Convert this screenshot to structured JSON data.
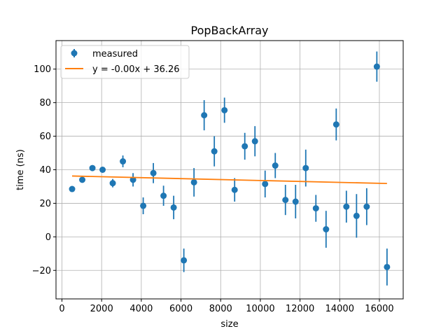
{
  "chart_data": {
    "type": "scatter",
    "title": "PopBackArray",
    "xlabel": "size",
    "ylabel": "time (ns)",
    "xlim": [
      -300,
      17200
    ],
    "ylim": [
      -37,
      117
    ],
    "xticks": [
      0,
      2000,
      4000,
      6000,
      8000,
      10000,
      12000,
      14000,
      16000
    ],
    "yticks": [
      -20,
      0,
      20,
      40,
      60,
      80,
      100
    ],
    "grid": true,
    "legend_position": "top-left",
    "colors": {
      "measured": "#1f77b4",
      "fit": "#ff7f0e"
    },
    "series": [
      {
        "name": "measured",
        "kind": "errorbar",
        "points": [
          {
            "x": 512,
            "y": 28.5,
            "err": 1.0
          },
          {
            "x": 1024,
            "y": 34.0,
            "err": 1.5
          },
          {
            "x": 1536,
            "y": 41.0,
            "err": 1.5
          },
          {
            "x": 2048,
            "y": 40.0,
            "err": 1.5
          },
          {
            "x": 2560,
            "y": 32.0,
            "err": 2.5
          },
          {
            "x": 3072,
            "y": 45.0,
            "err": 3.5
          },
          {
            "x": 3584,
            "y": 34.0,
            "err": 4.0
          },
          {
            "x": 4096,
            "y": 18.5,
            "err": 5.0
          },
          {
            "x": 4608,
            "y": 38.0,
            "err": 6.0
          },
          {
            "x": 5120,
            "y": 24.5,
            "err": 6.0
          },
          {
            "x": 5632,
            "y": 17.5,
            "err": 7.0
          },
          {
            "x": 6144,
            "y": -14.0,
            "err": 7.0
          },
          {
            "x": 6656,
            "y": 32.5,
            "err": 8.5
          },
          {
            "x": 7168,
            "y": 72.5,
            "err": 9.0
          },
          {
            "x": 7680,
            "y": 51.0,
            "err": 9.0
          },
          {
            "x": 8192,
            "y": 75.5,
            "err": 7.5
          },
          {
            "x": 8704,
            "y": 28.0,
            "err": 7.0
          },
          {
            "x": 9216,
            "y": 54.0,
            "err": 8.0
          },
          {
            "x": 9728,
            "y": 57.0,
            "err": 9.0
          },
          {
            "x": 10240,
            "y": 31.5,
            "err": 8.0
          },
          {
            "x": 10752,
            "y": 42.5,
            "err": 7.5
          },
          {
            "x": 11264,
            "y": 22.0,
            "err": 9.0
          },
          {
            "x": 11776,
            "y": 21.0,
            "err": 10.0
          },
          {
            "x": 12288,
            "y": 41.0,
            "err": 11.0
          },
          {
            "x": 12800,
            "y": 17.0,
            "err": 8.0
          },
          {
            "x": 13312,
            "y": 4.5,
            "err": 11.0
          },
          {
            "x": 13824,
            "y": 67.0,
            "err": 9.5
          },
          {
            "x": 14336,
            "y": 18.0,
            "err": 9.5
          },
          {
            "x": 14848,
            "y": 12.5,
            "err": 13.0
          },
          {
            "x": 15360,
            "y": 18.0,
            "err": 11.0
          },
          {
            "x": 15872,
            "y": 101.5,
            "err": 9.0
          },
          {
            "x": 16384,
            "y": -18.0,
            "err": 11.0
          }
        ]
      },
      {
        "name": "y = -0.00x + 36.26",
        "kind": "line",
        "x": [
          512,
          16384
        ],
        "y": [
          36.26,
          31.8
        ]
      }
    ]
  }
}
